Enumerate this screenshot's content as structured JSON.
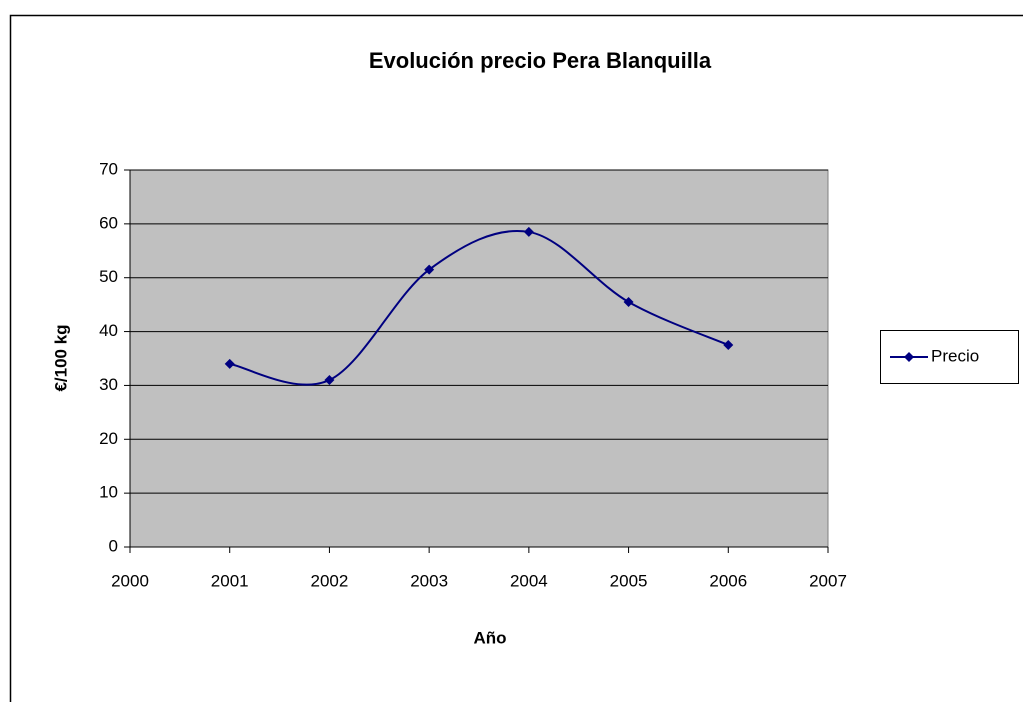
{
  "chart_data": {
    "type": "line",
    "title": "Evolución precio Pera Blanquilla",
    "x_label": "Año",
    "y_label": "€/100 kg",
    "series": [
      {
        "name": "Precio",
        "color": "#000080",
        "x": [
          2001,
          2002,
          2003,
          2004,
          2005,
          2006
        ],
        "values": [
          34,
          31,
          51.5,
          58.5,
          45.5,
          37.5
        ]
      }
    ],
    "xlim": [
      2000,
      2007
    ],
    "xticks": [
      2000,
      2001,
      2002,
      2003,
      2004,
      2005,
      2006,
      2007
    ],
    "ylim": [
      0,
      70
    ],
    "yticks": [
      0,
      10,
      20,
      30,
      40,
      50,
      60,
      70
    ],
    "grid": true,
    "smooth": true,
    "legend": "right"
  }
}
